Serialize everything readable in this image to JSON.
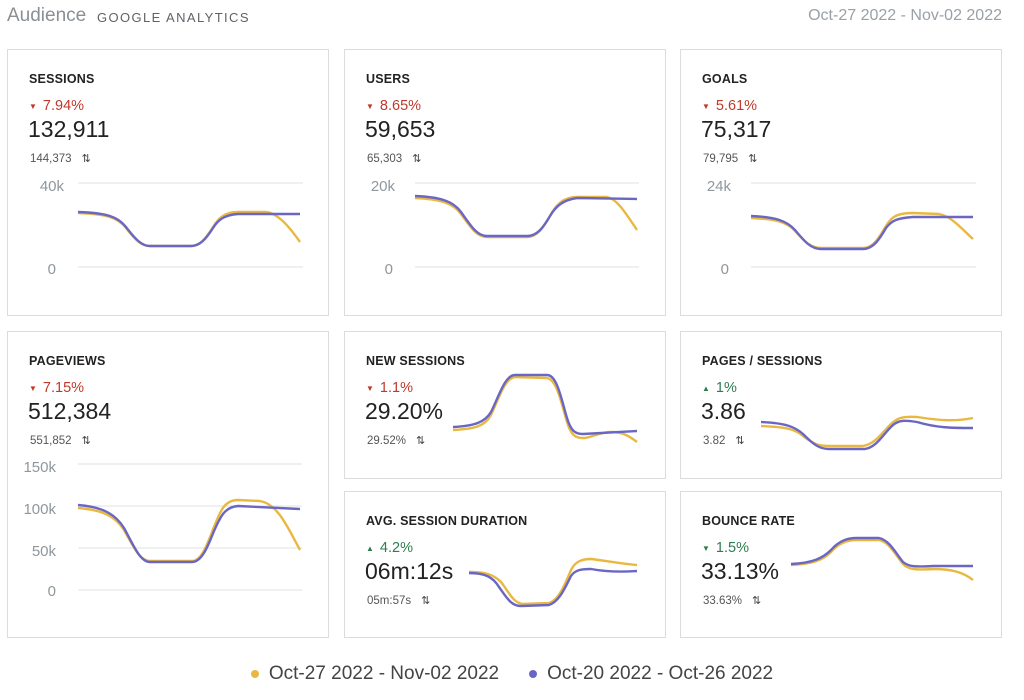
{
  "header": {
    "title": "Audience",
    "subtitle": "GOOGLE ANALYTICS",
    "date_range": "Oct-27 2022 - Nov-02 2022"
  },
  "colors": {
    "current": "#e9b840",
    "previous": "#6a67c4",
    "negative": "#c0392b",
    "positive": "#2e7d4f"
  },
  "cards": {
    "sessions": {
      "title": "SESSIONS",
      "change": "7.94%",
      "direction": "down",
      "value": "132,911",
      "previous": "144,373",
      "y_top": "40k",
      "y_zero": "0"
    },
    "users": {
      "title": "USERS",
      "change": "8.65%",
      "direction": "down",
      "value": "59,653",
      "previous": "65,303",
      "y_top": "20k",
      "y_zero": "0"
    },
    "goals": {
      "title": "GOALS",
      "change": "5.61%",
      "direction": "down",
      "value": "75,317",
      "previous": "79,795",
      "y_top": "24k",
      "y_zero": "0"
    },
    "pageviews": {
      "title": "PAGEVIEWS",
      "change": "7.15%",
      "direction": "down",
      "value": "512,384",
      "previous": "551,852",
      "y_top": "150k",
      "y_mid": "100k",
      "y_low": "50k",
      "y_zero": "0"
    },
    "new_sessions": {
      "title": "NEW SESSIONS",
      "change": "1.1%",
      "direction": "down",
      "value": "29.20%",
      "previous": "29.52%"
    },
    "pages_sessions": {
      "title": "PAGES / SESSIONS",
      "change": "1%",
      "direction": "up",
      "value": "3.86",
      "previous": "3.82"
    },
    "avg_duration": {
      "title": "AVG. SESSION DURATION",
      "change": "4.2%",
      "direction": "up",
      "value": "06m:12s",
      "previous": "05m:57s"
    },
    "bounce_rate": {
      "title": "BOUNCE RATE",
      "change": "1.5%",
      "direction": "down",
      "value": "33.13%",
      "previous": "33.63%"
    }
  },
  "legend": {
    "current_label": "Oct-27 2022 - Nov-02 2022",
    "previous_label": "Oct-20 2022 - Oct-26 2022"
  }
}
